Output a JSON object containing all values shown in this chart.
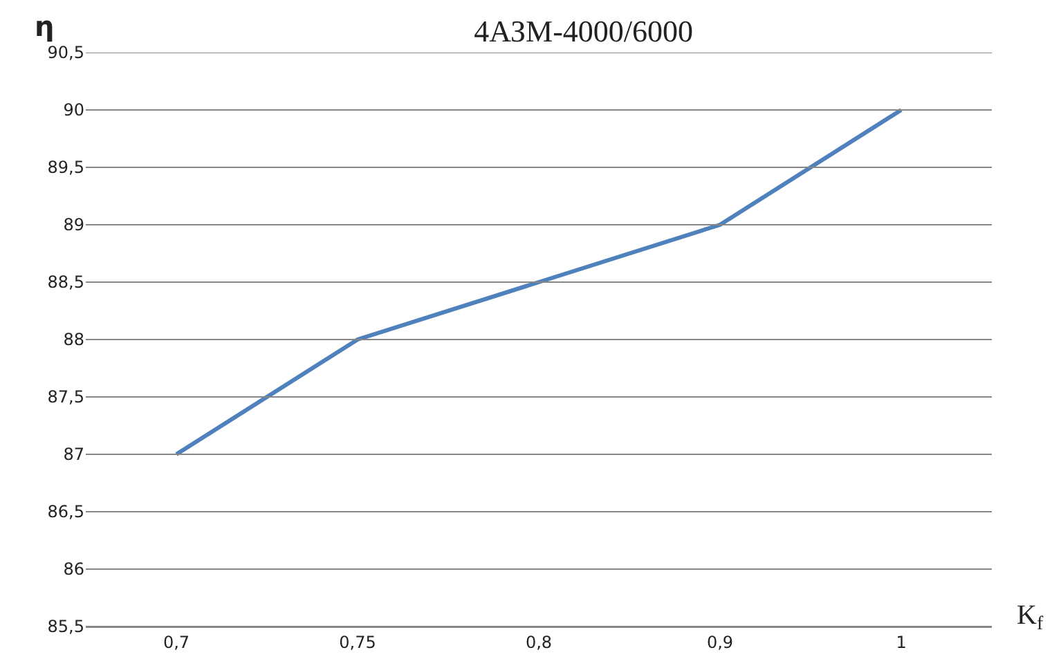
{
  "chart_data": {
    "type": "line",
    "title": "4АЗМ-4000/6000",
    "xlabel": "K$_{f}$",
    "ylabel": "η",
    "categories": [
      "0,7",
      "0,75",
      "0,8",
      "0,9",
      "1"
    ],
    "series": [
      {
        "color": "#4f81bd",
        "values": [
          87,
          88,
          88.5,
          89,
          90
        ]
      }
    ],
    "ylim": [
      85.5,
      90.5
    ],
    "yticks": [
      {
        "value": 85.5,
        "label": "85,5"
      },
      86,
      {
        "value": 86.5,
        "label": "86,5"
      },
      87,
      {
        "value": 87.5,
        "label": "87,5"
      },
      88,
      {
        "value": 88.5,
        "label": "88,5"
      },
      89,
      {
        "value": 89.5,
        "label": "89,5"
      },
      90,
      {
        "value": 90.5,
        "label": "90,5"
      }
    ],
    "grid": "y",
    "marker": "none",
    "line_style": "solid"
  }
}
